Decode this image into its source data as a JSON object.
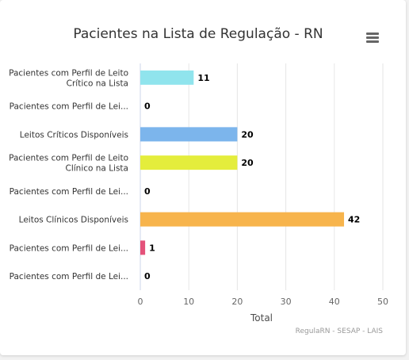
{
  "chart_data": {
    "type": "bar",
    "orientation": "horizontal",
    "title": "Pacientes na Lista de Regulação - RN",
    "categories": [
      "Pacientes com Perfil de Leito Crítico na Lista",
      "Pacientes com Perfil de Lei...",
      "Leitos Críticos Disponíveis",
      "Pacientes com Perfil de Leito Clínico na Lista",
      "Pacientes com Perfil de Lei...",
      "Leitos Clínicos Disponíveis",
      "Pacientes com Perfil de Lei...",
      "Pacientes com Perfil de Lei..."
    ],
    "category_lines": [
      [
        "Pacientes com Perfil de Leito",
        "Crítico na Lista"
      ],
      [
        "Pacientes com Perfil de Lei..."
      ],
      [
        "Leitos Críticos Disponíveis"
      ],
      [
        "Pacientes com Perfil de Leito",
        "Clínico na Lista"
      ],
      [
        "Pacientes com Perfil de Lei..."
      ],
      [
        "Leitos Clínicos Disponíveis"
      ],
      [
        "Pacientes com Perfil de Lei..."
      ],
      [
        "Pacientes com Perfil de Lei..."
      ]
    ],
    "values": [
      11,
      0,
      20,
      20,
      0,
      42,
      1,
      0
    ],
    "colors": [
      "#90e4ed",
      "#90e4ed",
      "#7cb5ec",
      "#e4ed3c",
      "#e4ed3c",
      "#f7b44c",
      "#e4527a",
      "#e4527a"
    ],
    "xlabel": "Total",
    "xlim": [
      0,
      50
    ],
    "ticks": [
      0,
      10,
      20,
      30,
      40,
      50
    ],
    "grid": true,
    "credits": "RegulaRN - SESAP - LAIS"
  }
}
